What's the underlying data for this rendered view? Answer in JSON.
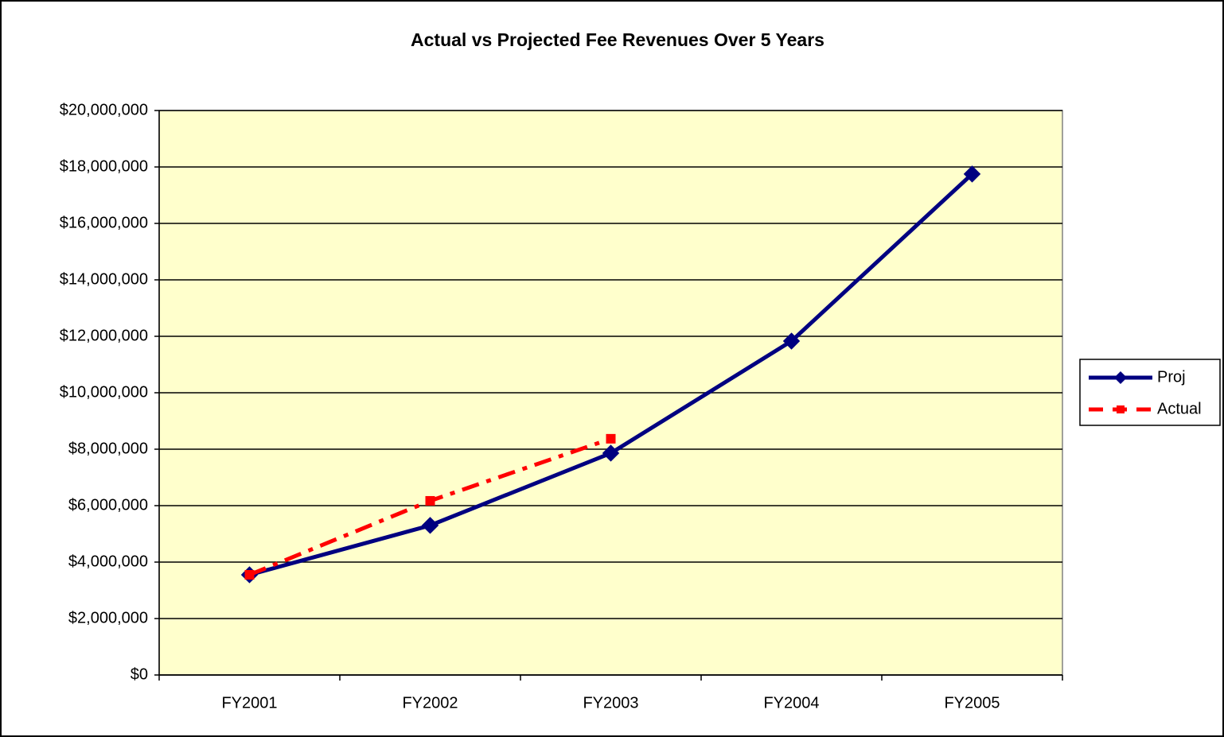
{
  "chart_data": {
    "type": "line",
    "title": "Actual vs Projected Fee Revenues Over 5 Years",
    "categories": [
      "FY2001",
      "FY2002",
      "FY2003",
      "FY2004",
      "FY2005"
    ],
    "series": [
      {
        "name": "Proj",
        "color": "#000080",
        "marker": "diamond",
        "dash": "solid",
        "values": [
          3550000,
          5300000,
          7860000,
          11830000,
          17750000
        ]
      },
      {
        "name": "Actual",
        "color": "#ff0000",
        "marker": "square",
        "dash": "dashdot",
        "values": [
          3550000,
          6170000,
          8370000,
          null,
          null
        ]
      }
    ],
    "ylim": [
      0,
      20000000
    ],
    "yticks": [
      {
        "value": 0,
        "label": "$0"
      },
      {
        "value": 2000000,
        "label": "$2,000,000"
      },
      {
        "value": 4000000,
        "label": "$4,000,000"
      },
      {
        "value": 6000000,
        "label": "$6,000,000"
      },
      {
        "value": 8000000,
        "label": "$8,000,000"
      },
      {
        "value": 10000000,
        "label": "$10,000,000"
      },
      {
        "value": 12000000,
        "label": "$12,000,000"
      },
      {
        "value": 14000000,
        "label": "$14,000,000"
      },
      {
        "value": 16000000,
        "label": "$16,000,000"
      },
      {
        "value": 18000000,
        "label": "$18,000,000"
      },
      {
        "value": 20000000,
        "label": "$20,000,000"
      }
    ],
    "grid": true,
    "legend": "right",
    "plot_background": "#ffffcc"
  }
}
